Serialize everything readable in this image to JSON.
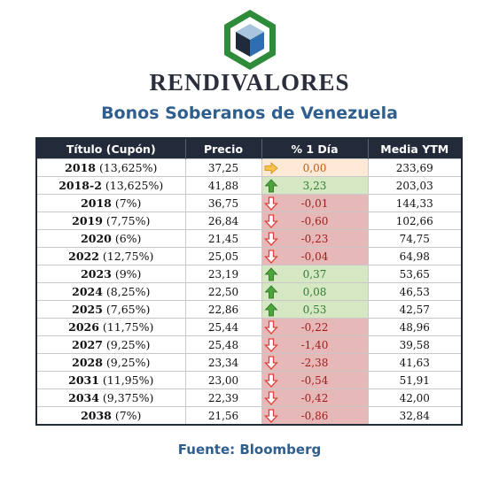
{
  "header": {
    "brand": "RENDIVALORES",
    "subtitle": "Bonos Soberanos de Venezuela",
    "logo_icon": "cube-hexagon-logo-icon"
  },
  "table": {
    "columns": [
      "Título (Cupón)",
      "Precio",
      "% 1 Día",
      "Media YTM"
    ],
    "rows": [
      {
        "year": "2018",
        "coupon": "(13,625%)",
        "precio": "37,25",
        "cambio": "0,00",
        "ytm": "233,69",
        "trend": "flat"
      },
      {
        "year": "2018-2",
        "coupon": "(13,625%)",
        "precio": "41,88",
        "cambio": "3,23",
        "ytm": "203,03",
        "trend": "up"
      },
      {
        "year": "2018",
        "coupon": "(7%)",
        "precio": "36,75",
        "cambio": "-0,01",
        "ytm": "144,33",
        "trend": "down"
      },
      {
        "year": "2019",
        "coupon": "(7,75%)",
        "precio": "26,84",
        "cambio": "-0,60",
        "ytm": "102,66",
        "trend": "down"
      },
      {
        "year": "2020",
        "coupon": "(6%)",
        "precio": "21,45",
        "cambio": "-0,23",
        "ytm": "74,75",
        "trend": "down"
      },
      {
        "year": "2022",
        "coupon": "(12,75%)",
        "precio": "25,05",
        "cambio": "-0,04",
        "ytm": "64,98",
        "trend": "down"
      },
      {
        "year": "2023",
        "coupon": "(9%)",
        "precio": "23,19",
        "cambio": "0,37",
        "ytm": "53,65",
        "trend": "up"
      },
      {
        "year": "2024",
        "coupon": "(8,25%)",
        "precio": "22,50",
        "cambio": "0,08",
        "ytm": "46,53",
        "trend": "up"
      },
      {
        "year": "2025",
        "coupon": "(7,65%)",
        "precio": "22,86",
        "cambio": "0,53",
        "ytm": "42,57",
        "trend": "up"
      },
      {
        "year": "2026",
        "coupon": "(11,75%)",
        "precio": "25,44",
        "cambio": "-0,22",
        "ytm": "48,96",
        "trend": "down"
      },
      {
        "year": "2027",
        "coupon": "(9,25%)",
        "precio": "25,48",
        "cambio": "-1,40",
        "ytm": "39,58",
        "trend": "down"
      },
      {
        "year": "2028",
        "coupon": "(9,25%)",
        "precio": "23,34",
        "cambio": "-2,38",
        "ytm": "41,63",
        "trend": "down"
      },
      {
        "year": "2031",
        "coupon": "(11,95%)",
        "precio": "23,00",
        "cambio": "-0,54",
        "ytm": "51,91",
        "trend": "down"
      },
      {
        "year": "2034",
        "coupon": "(9,375%)",
        "precio": "22,39",
        "cambio": "-0,42",
        "ytm": "42,00",
        "trend": "down"
      },
      {
        "year": "2038",
        "coupon": "(7%)",
        "precio": "21,56",
        "cambio": "-0,86",
        "ytm": "32,84",
        "trend": "down"
      }
    ],
    "trend_icons": {
      "up": "arrow-up-icon",
      "down": "arrow-down-icon",
      "flat": "arrow-right-icon"
    },
    "colors": {
      "down_bg": "#e6b9b8",
      "up_bg": "#d6e7c4",
      "flat_bg": "#fde9d6",
      "header_bg": "#232b3a"
    }
  },
  "footer": {
    "source": "Fuente: Bloomberg"
  }
}
